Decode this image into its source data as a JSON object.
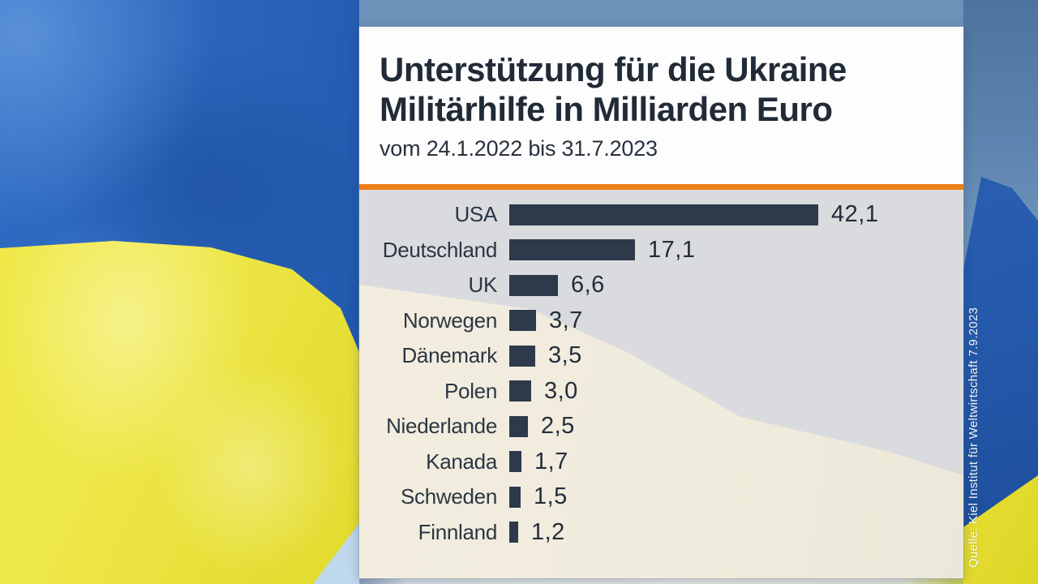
{
  "panel": {
    "title_line1": "Unterstützung für die Ukraine",
    "title_line2": "Militärhilfe in Milliarden Euro",
    "subtitle": "vom 24.1.2022 bis 31.7.2023",
    "source": "Quelle: Kiel Institut für Weltwirtschaft 7.9.2023",
    "accent_color": "#ee7d15"
  },
  "colors": {
    "flag_blue": "#2a64ba",
    "flag_yellow": "#ece43e",
    "sky_blue": "#5d84b0",
    "panel_white": "#fdfdfd",
    "chart_gray": "#d9dbde",
    "chart_cream": "#f0ecdd",
    "bar_navy": "#2e3a4b",
    "text_dark": "#212b38"
  },
  "chart_data": {
    "type": "bar",
    "orientation": "horizontal",
    "title": "Unterstützung für die Ukraine — Militärhilfe in Milliarden Euro",
    "period": "vom 24.1.2022 bis 31.7.2023",
    "unit": "Milliarden Euro",
    "categories": [
      "USA",
      "Deutschland",
      "UK",
      "Norwegen",
      "Dänemark",
      "Polen",
      "Niederlande",
      "Kanada",
      "Schweden",
      "Finnland"
    ],
    "values": [
      42.1,
      17.1,
      6.6,
      3.7,
      3.5,
      3.0,
      2.5,
      1.7,
      1.5,
      1.2
    ],
    "display_values": [
      "42,1",
      "17,1",
      "6,6",
      "3,7",
      "3,5",
      "3,0",
      "2,5",
      "1,7",
      "1,5",
      "1,2"
    ],
    "xlim": [
      0,
      45
    ],
    "grid": false,
    "legend": false,
    "bar_color": "#2e3a4b",
    "source": "Quelle: Kiel Institut für Weltwirtschaft 7.9.2023"
  }
}
